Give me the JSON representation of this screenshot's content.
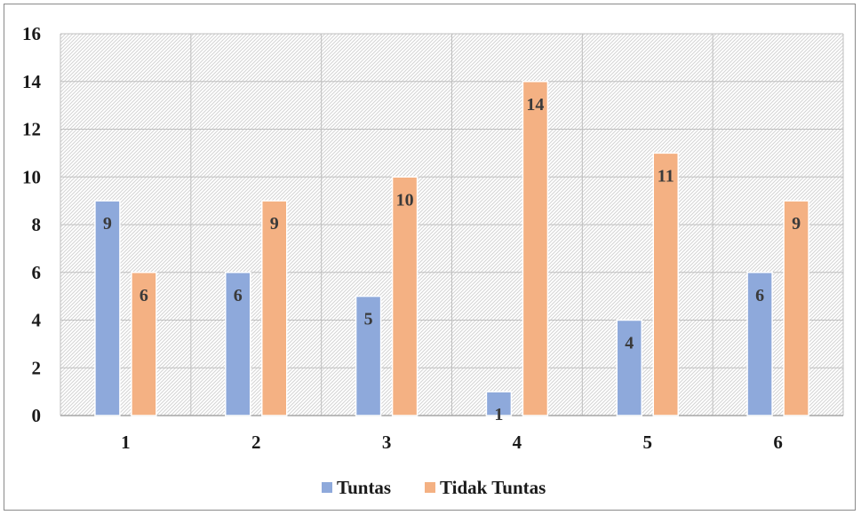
{
  "chart_data": {
    "type": "bar",
    "categories": [
      "1",
      "2",
      "3",
      "4",
      "5",
      "6"
    ],
    "series": [
      {
        "name": "Tuntas",
        "color": "#8EA9DB",
        "values": [
          9,
          6,
          5,
          1,
          4,
          6
        ]
      },
      {
        "name": "Tidak Tuntas",
        "color": "#F4B183",
        "values": [
          6,
          9,
          10,
          14,
          11,
          9
        ]
      }
    ],
    "y_ticks": [
      "0",
      "2",
      "4",
      "6",
      "8",
      "10",
      "12",
      "14",
      "16"
    ],
    "ylim": [
      0,
      16
    ],
    "grid": true,
    "legend_position": "bottom",
    "data_labels": true
  }
}
